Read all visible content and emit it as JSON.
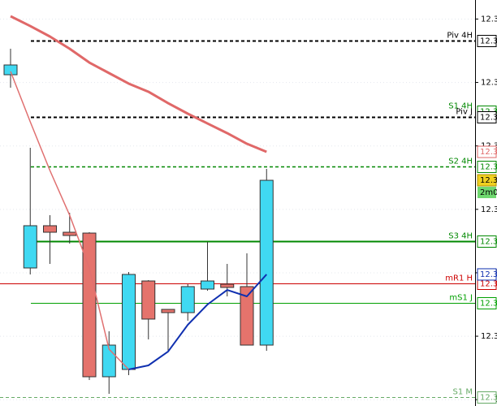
{
  "chart_data": {
    "type": "candlestick",
    "ylim": [
      12.299,
      12.363
    ],
    "yticks": [
      {
        "value": 12.36,
        "label": "12.3"
      },
      {
        "value": 12.35,
        "label": "12.3"
      },
      {
        "value": 12.34,
        "label": "12.3"
      },
      {
        "value": 12.33,
        "label": "12.3"
      },
      {
        "value": 12.32,
        "label": "12.3"
      },
      {
        "value": 12.31,
        "label": "12.3"
      },
      {
        "value": 12.3,
        "label": "12.3"
      }
    ],
    "grid": true,
    "up_color": "#40d9f2",
    "down_color": "#e5736c",
    "open": [
      12.35122,
      12.32076,
      12.32742,
      12.32639,
      12.32626,
      12.30361,
      12.30476,
      12.31871,
      12.31423,
      12.31372,
      12.31743,
      12.3182,
      12.31782,
      12.3086
    ],
    "close": [
      12.35276,
      12.32742,
      12.32639,
      12.32588,
      12.30361,
      12.3086,
      12.31974,
      12.3127,
      12.31372,
      12.31782,
      12.31871,
      12.31769,
      12.3086,
      12.33458
    ],
    "high": [
      12.35532,
      12.3397,
      12.32908,
      12.32946,
      12.32639,
      12.31078,
      12.32012,
      12.31884,
      12.31423,
      12.3182,
      12.32486,
      12.3214,
      12.32306,
      12.33638
    ],
    "low": [
      12.34918,
      12.31974,
      12.3214,
      12.3246,
      12.3031,
      12.30092,
      12.30386,
      12.3095,
      12.30758,
      12.31244,
      12.31718,
      12.31628,
      12.3086,
      12.3077
    ],
    "series": [
      {
        "color": "#e06868",
        "width": 3,
        "axis_label": "12.3",
        "values": [
          12.36044,
          12.3589,
          12.35724,
          12.35532,
          12.35314,
          12.35148,
          12.34982,
          12.34854,
          12.34674,
          12.34508,
          12.34354,
          12.34201,
          12.34034,
          12.33906
        ]
      },
      {
        "color": "#e07070",
        "width": 1.5,
        "values": [
          12.35174,
          12.3438,
          12.33612,
          12.32908,
          12.32076,
          12.30796,
          12.30476,
          null,
          null,
          null,
          null,
          null,
          null,
          null
        ]
      },
      {
        "color": "#1030b0",
        "width": 2,
        "axis_label": "12.3",
        "values": [
          null,
          null,
          null,
          null,
          null,
          null,
          12.30476,
          12.3054,
          12.30758,
          12.3118,
          12.315,
          12.3173,
          12.31628,
          12.31974
        ]
      }
    ],
    "levels": [
      {
        "label": "Piv 4H",
        "value": 12.3566,
        "color": "#000000",
        "dash": true,
        "width": 2,
        "axis_label": "12.3"
      },
      {
        "label": "S1 4H",
        "value": 12.34546,
        "color": "#008800",
        "dash": true,
        "width": 0,
        "axis_label": "12.3"
      },
      {
        "label": "Piv J",
        "value": 12.34457,
        "color": "#000000",
        "dash": true,
        "width": 2,
        "axis_label": "12.3"
      },
      {
        "label": "S2 4H",
        "value": 12.33676,
        "color": "#008800",
        "dash": true,
        "width": 1.5,
        "axis_label": "12.3"
      },
      {
        "label": "S3 4H",
        "value": 12.32498,
        "color": "#008800",
        "dash": false,
        "width": 2,
        "axis_label": "12.3"
      },
      {
        "label": "mR1 H",
        "value": 12.31833,
        "color": "#cc0000",
        "dash": false,
        "width": 1,
        "axis_label": "12.3"
      },
      {
        "label": "mS1 J",
        "value": 12.31526,
        "color": "#00a000",
        "dash": false,
        "width": 1,
        "axis_label": "12.3"
      },
      {
        "label": "S1 M",
        "value": 12.30041,
        "color": "#66aa66",
        "dash": true,
        "width": 1,
        "axis_label": "12.3"
      }
    ],
    "last_price_label": "12.3",
    "timer": "2m0"
  }
}
